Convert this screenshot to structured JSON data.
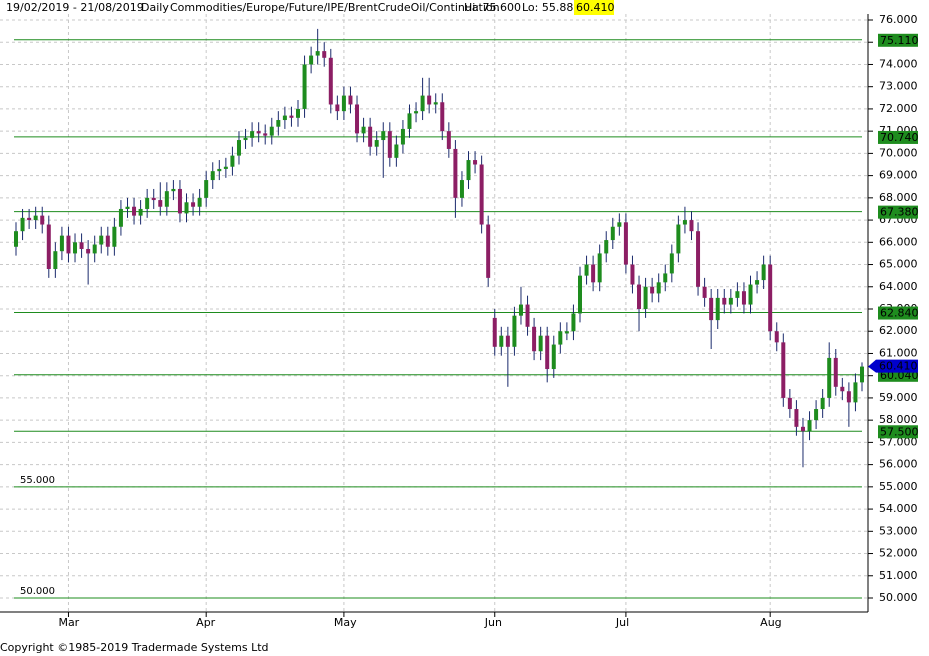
{
  "chart_data": {
    "type": "candlestick",
    "range": "19/02/2019 - 21/08/2019",
    "interval": "Daily",
    "symbol": "Commodities/Europe/Future/IPE/BrentCrudeOil/Continuation",
    "hi": {
      "value": 75.6,
      "label": "Hi: 75.600"
    },
    "lo": {
      "value": 55.88,
      "label": "Lo: 55.880"
    },
    "last": {
      "value": 60.41,
      "label": "60.410",
      "color": "#0000cc"
    },
    "copyright": "Copyright ©1985-2019 Tradermade Systems Ltd",
    "categories": [
      null,
      null,
      null,
      null,
      null,
      null,
      null,
      null,
      null,
      null,
      null,
      null,
      null,
      null,
      null,
      null,
      null,
      null,
      null,
      null,
      null,
      null,
      null,
      null,
      null,
      null,
      null,
      null,
      null,
      null,
      null,
      null,
      null,
      null,
      null,
      null,
      null,
      null,
      null,
      null,
      null,
      null,
      null,
      null,
      null,
      null,
      null,
      null,
      null,
      null,
      null,
      null,
      null,
      null,
      null,
      null,
      null,
      null,
      null,
      null,
      null,
      null,
      null,
      null,
      null,
      null,
      null,
      null,
      null,
      null,
      null,
      null,
      null,
      null,
      null,
      null,
      null,
      null,
      null,
      null,
      null,
      null,
      null,
      null,
      null,
      null,
      null,
      null,
      null,
      null,
      null,
      null,
      null,
      null,
      null,
      null,
      null,
      null,
      null,
      null,
      null,
      null,
      null,
      null,
      null,
      null,
      null,
      null,
      null,
      null,
      null,
      null,
      null,
      null,
      null,
      null,
      null,
      null,
      null,
      null,
      null,
      null,
      null,
      null,
      null,
      null,
      null,
      null,
      null,
      null
    ],
    "open": [
      65.8,
      66.5,
      67.1,
      67.0,
      67.2,
      66.8,
      64.8,
      65.6,
      66.3,
      65.5,
      66.0,
      65.7,
      65.5,
      65.9,
      66.3,
      65.8,
      66.7,
      67.5,
      67.6,
      67.2,
      67.5,
      68.0,
      67.9,
      67.6,
      68.3,
      68.4,
      67.3,
      67.8,
      67.6,
      68.0,
      68.8,
      69.2,
      69.3,
      69.4,
      69.9,
      70.6,
      70.7,
      71.0,
      70.9,
      70.8,
      71.2,
      71.5,
      71.7,
      71.6,
      72.0,
      74.0,
      74.4,
      74.6,
      74.3,
      72.2,
      71.9,
      72.6,
      72.2,
      70.9,
      71.2,
      70.3,
      70.6,
      71.0,
      69.8,
      70.4,
      71.1,
      71.8,
      71.9,
      72.6,
      72.2,
      72.3,
      71.0,
      70.2,
      68.0,
      68.8,
      69.7,
      69.5,
      66.8,
      62.6,
      61.3,
      61.8,
      61.3,
      62.7,
      63.2,
      62.2,
      61.1,
      61.8,
      60.3,
      61.4,
      61.9,
      62.0,
      62.8,
      64.5,
      65.0,
      64.2,
      65.5,
      66.1,
      66.7,
      66.9,
      65.0,
      64.1,
      63.0,
      64.0,
      63.7,
      64.2,
      64.6,
      65.5,
      66.8,
      67.0,
      66.5,
      64.0,
      63.5,
      62.5,
      63.5,
      63.2,
      63.5,
      63.8,
      63.2,
      64.1,
      64.3,
      65.0,
      62.0,
      61.5,
      59.0,
      58.5,
      57.7,
      57.5,
      58.0,
      58.5,
      59.0,
      60.8,
      59.5,
      59.3,
      58.8,
      59.7
    ],
    "high": [
      66.9,
      67.5,
      67.5,
      67.6,
      67.6,
      67.2,
      66.0,
      66.7,
      66.7,
      66.4,
      66.4,
      66.1,
      66.3,
      66.7,
      66.7,
      67.1,
      67.9,
      68.0,
      68.0,
      67.9,
      68.4,
      68.4,
      68.7,
      68.7,
      68.8,
      68.8,
      68.2,
      68.2,
      68.4,
      69.2,
      69.6,
      69.7,
      69.8,
      70.3,
      71.0,
      71.1,
      71.4,
      71.4,
      71.3,
      71.6,
      71.9,
      72.1,
      72.1,
      72.4,
      74.4,
      74.8,
      75.6,
      75.0,
      74.7,
      72.6,
      73.0,
      73.0,
      72.6,
      71.6,
      71.6,
      71.0,
      71.4,
      71.4,
      70.8,
      71.5,
      72.2,
      72.3,
      73.4,
      73.4,
      72.7,
      72.7,
      71.4,
      70.6,
      69.2,
      70.1,
      70.1,
      69.9,
      67.2,
      63.0,
      62.2,
      62.2,
      63.1,
      64.0,
      63.6,
      62.6,
      62.2,
      62.2,
      61.8,
      62.4,
      62.4,
      63.2,
      64.9,
      65.4,
      65.4,
      65.9,
      66.5,
      67.1,
      67.3,
      67.3,
      65.4,
      64.5,
      64.4,
      64.4,
      64.6,
      65.0,
      65.9,
      67.2,
      67.6,
      67.4,
      66.9,
      64.4,
      63.9,
      63.9,
      63.9,
      63.9,
      64.2,
      64.2,
      64.5,
      64.7,
      65.4,
      65.4,
      62.4,
      61.9,
      59.4,
      58.9,
      58.1,
      58.4,
      58.9,
      59.4,
      61.5,
      61.2,
      59.9,
      59.7,
      60.1,
      60.6
    ],
    "low": [
      65.4,
      66.1,
      66.6,
      66.6,
      66.4,
      64.4,
      64.4,
      65.2,
      65.1,
      65.1,
      65.3,
      64.1,
      65.1,
      65.5,
      65.4,
      65.4,
      66.3,
      67.1,
      66.8,
      66.8,
      67.1,
      67.5,
      67.2,
      67.2,
      67.9,
      66.9,
      66.9,
      67.2,
      67.2,
      67.6,
      68.4,
      68.8,
      68.9,
      69.0,
      69.5,
      70.2,
      70.3,
      70.5,
      70.4,
      70.4,
      70.8,
      71.1,
      71.2,
      71.2,
      71.6,
      73.6,
      74.0,
      73.9,
      71.8,
      71.5,
      71.5,
      71.8,
      70.5,
      70.5,
      69.9,
      69.9,
      68.9,
      69.4,
      69.4,
      70.0,
      70.7,
      71.4,
      71.5,
      71.8,
      71.8,
      70.6,
      69.8,
      67.1,
      67.6,
      68.4,
      69.1,
      66.4,
      64.0,
      60.9,
      60.9,
      59.5,
      60.9,
      62.3,
      61.8,
      60.7,
      60.7,
      59.7,
      59.9,
      61.0,
      61.6,
      61.6,
      62.4,
      64.1,
      63.8,
      63.8,
      65.1,
      65.7,
      66.3,
      64.6,
      63.7,
      62.0,
      62.6,
      63.3,
      63.3,
      63.8,
      64.2,
      65.1,
      66.4,
      66.1,
      63.6,
      63.1,
      61.2,
      62.1,
      62.8,
      62.8,
      63.1,
      62.8,
      62.8,
      63.7,
      63.9,
      61.6,
      61.1,
      58.6,
      58.1,
      57.3,
      55.88,
      57.1,
      57.6,
      58.1,
      58.6,
      59.1,
      58.9,
      57.7,
      58.4,
      59.3
    ],
    "close": [
      66.5,
      67.1,
      67.0,
      67.2,
      66.8,
      64.8,
      65.6,
      66.3,
      65.5,
      66.0,
      65.7,
      65.5,
      65.9,
      66.3,
      65.8,
      66.7,
      67.5,
      67.6,
      67.2,
      67.5,
      68.0,
      67.9,
      67.6,
      68.3,
      68.4,
      67.3,
      67.8,
      67.6,
      68.0,
      68.8,
      69.2,
      69.3,
      69.4,
      69.9,
      70.6,
      70.7,
      71.0,
      70.9,
      70.8,
      71.2,
      71.5,
      71.7,
      71.6,
      72.0,
      74.0,
      74.4,
      74.6,
      74.3,
      72.2,
      71.9,
      72.6,
      72.2,
      70.9,
      71.2,
      70.3,
      70.6,
      71.0,
      69.8,
      70.4,
      71.1,
      71.8,
      71.9,
      72.6,
      72.2,
      72.3,
      71.0,
      70.2,
      68.0,
      68.8,
      69.7,
      69.5,
      66.8,
      64.4,
      61.3,
      61.8,
      61.3,
      62.7,
      63.2,
      62.2,
      61.1,
      61.8,
      60.3,
      61.4,
      62.0,
      62.0,
      62.8,
      64.5,
      65.0,
      64.2,
      65.5,
      66.1,
      66.7,
      66.9,
      65.0,
      64.1,
      63.0,
      64.0,
      63.7,
      64.2,
      64.6,
      65.5,
      66.8,
      67.0,
      66.5,
      64.0,
      63.5,
      62.5,
      63.5,
      63.2,
      63.5,
      63.8,
      63.2,
      64.1,
      64.3,
      65.0,
      62.0,
      61.5,
      59.0,
      58.5,
      57.7,
      57.5,
      58.0,
      58.5,
      59.0,
      60.8,
      59.5,
      59.3,
      58.8,
      59.7,
      60.41
    ],
    "up_color": "#1e8c1e",
    "down_color": "#8c1e64",
    "wick_color": "#1a2a6c",
    "xticks": [
      {
        "value": 8,
        "label": "Mar"
      },
      {
        "value": 29,
        "label": "Apr"
      },
      {
        "value": 50,
        "label": "May"
      },
      {
        "value": 73,
        "label": "Jun"
      },
      {
        "value": 93,
        "label": "Jul"
      },
      {
        "value": 115,
        "label": "Aug"
      }
    ],
    "ylim": [
      50,
      76
    ],
    "yticks": [
      {
        "value": 50,
        "label": "50.000"
      },
      {
        "value": 51,
        "label": "51.000"
      },
      {
        "value": 52,
        "label": "52.000"
      },
      {
        "value": 53,
        "label": "53.000"
      },
      {
        "value": 54,
        "label": "54.000"
      },
      {
        "value": 55,
        "label": "55.000"
      },
      {
        "value": 56,
        "label": "56.000"
      },
      {
        "value": 57,
        "label": "57.000"
      },
      {
        "value": 58,
        "label": "58.000"
      },
      {
        "value": 59,
        "label": "59.000"
      },
      {
        "value": 60,
        "label": "60.000"
      },
      {
        "value": 61,
        "label": "61.000"
      },
      {
        "value": 62,
        "label": "62.000"
      },
      {
        "value": 63,
        "label": "63.000"
      },
      {
        "value": 64,
        "label": "64.000"
      },
      {
        "value": 65,
        "label": "65.000"
      },
      {
        "value": 66,
        "label": "66.000"
      },
      {
        "value": 67,
        "label": "67.000"
      },
      {
        "value": 68,
        "label": "68.000"
      },
      {
        "value": 69,
        "label": "69.000"
      },
      {
        "value": 70,
        "label": "70.000"
      },
      {
        "value": 71,
        "label": "71.000"
      },
      {
        "value": 72,
        "label": "72.000"
      },
      {
        "value": 73,
        "label": "73.000"
      },
      {
        "value": 74,
        "label": "74.000"
      },
      {
        "value": 75,
        "label": "75.000"
      },
      {
        "value": 76,
        "label": "76.000"
      }
    ],
    "grid": true,
    "levels": [
      {
        "value": 75.11,
        "label": "75.110",
        "side": "right"
      },
      {
        "value": 70.74,
        "label": "70.740",
        "side": "right"
      },
      {
        "value": 67.38,
        "label": "67.380",
        "side": "right"
      },
      {
        "value": 62.84,
        "label": "62.840",
        "side": "right"
      },
      {
        "value": 60.04,
        "label": "60.040",
        "side": "right"
      },
      {
        "value": 57.5,
        "label": "57.500",
        "side": "right"
      },
      {
        "value": 55,
        "label": "55.000",
        "side": "left"
      },
      {
        "value": 50,
        "label": "50.000",
        "side": "left"
      }
    ],
    "level_color": "#1e8c1e"
  }
}
